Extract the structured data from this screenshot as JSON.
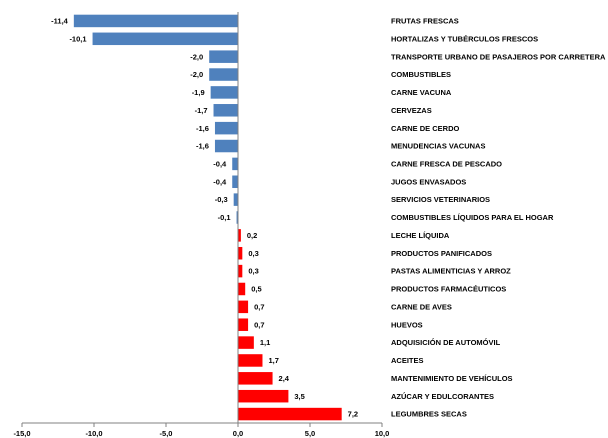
{
  "chart_data": {
    "type": "bar",
    "orientation": "horizontal",
    "title": "",
    "xlabel": "",
    "ylabel": "",
    "xlim": [
      -15,
      10
    ],
    "x_ticks": [
      "-15,0",
      "-10,0",
      "-5,0",
      "0,0",
      "5,0",
      "10,0"
    ],
    "x_tick_values": [
      -15,
      -10,
      -5,
      0,
      5,
      10
    ],
    "grid": false,
    "legend": "none",
    "colors": {
      "negative": "#4F81BD",
      "positive": "#FF0000",
      "axis": "#808080"
    },
    "bars": [
      {
        "category": "FRUTAS FRESCAS",
        "value": -11.4,
        "label": "-11,4"
      },
      {
        "category": "HORTALIZAS Y TUBÉRCULOS FRESCOS",
        "value": -10.1,
        "label": "-10,1"
      },
      {
        "category": "TRANSPORTE URBANO DE PASAJEROS POR CARRETERA",
        "value": -2.0,
        "label": "-2,0"
      },
      {
        "category": "COMBUSTIBLES",
        "value": -2.0,
        "label": "-2,0"
      },
      {
        "category": "CARNE VACUNA",
        "value": -1.9,
        "label": "-1,9"
      },
      {
        "category": "CERVEZAS",
        "value": -1.7,
        "label": "-1,7"
      },
      {
        "category": "CARNE DE CERDO",
        "value": -1.6,
        "label": "-1,6"
      },
      {
        "category": "MENUDENCIAS VACUNAS",
        "value": -1.6,
        "label": "-1,6"
      },
      {
        "category": "CARNE FRESCA DE PESCADO",
        "value": -0.4,
        "label": "-0,4"
      },
      {
        "category": "JUGOS ENVASADOS",
        "value": -0.4,
        "label": "-0,4"
      },
      {
        "category": "SERVICIOS VETERINARIOS",
        "value": -0.3,
        "label": "-0,3"
      },
      {
        "category": "COMBUSTIBLES LÍQUIDOS PARA EL HOGAR",
        "value": -0.1,
        "label": "-0,1"
      },
      {
        "category": "LECHE LÍQUIDA",
        "value": 0.2,
        "label": "0,2"
      },
      {
        "category": "PRODUCTOS PANIFICADOS",
        "value": 0.3,
        "label": "0,3"
      },
      {
        "category": "PASTAS ALIMENTICIAS Y ARROZ",
        "value": 0.3,
        "label": "0,3"
      },
      {
        "category": "PRODUCTOS FARMACÉUTICOS",
        "value": 0.5,
        "label": "0,5"
      },
      {
        "category": "CARNE DE AVES",
        "value": 0.7,
        "label": "0,7"
      },
      {
        "category": "HUEVOS",
        "value": 0.7,
        "label": "0,7"
      },
      {
        "category": "ADQUISICIÓN DE AUTOMÓVIL",
        "value": 1.1,
        "label": "1,1"
      },
      {
        "category": "ACEITES",
        "value": 1.7,
        "label": "1,7"
      },
      {
        "category": "MANTENIMIENTO DE VEHÍCULOS",
        "value": 2.4,
        "label": "2,4"
      },
      {
        "category": "AZÚCAR Y EDULCORANTES",
        "value": 3.5,
        "label": "3,5"
      },
      {
        "category": "LEGUMBRES SECAS",
        "value": 7.2,
        "label": "7,2"
      }
    ]
  }
}
